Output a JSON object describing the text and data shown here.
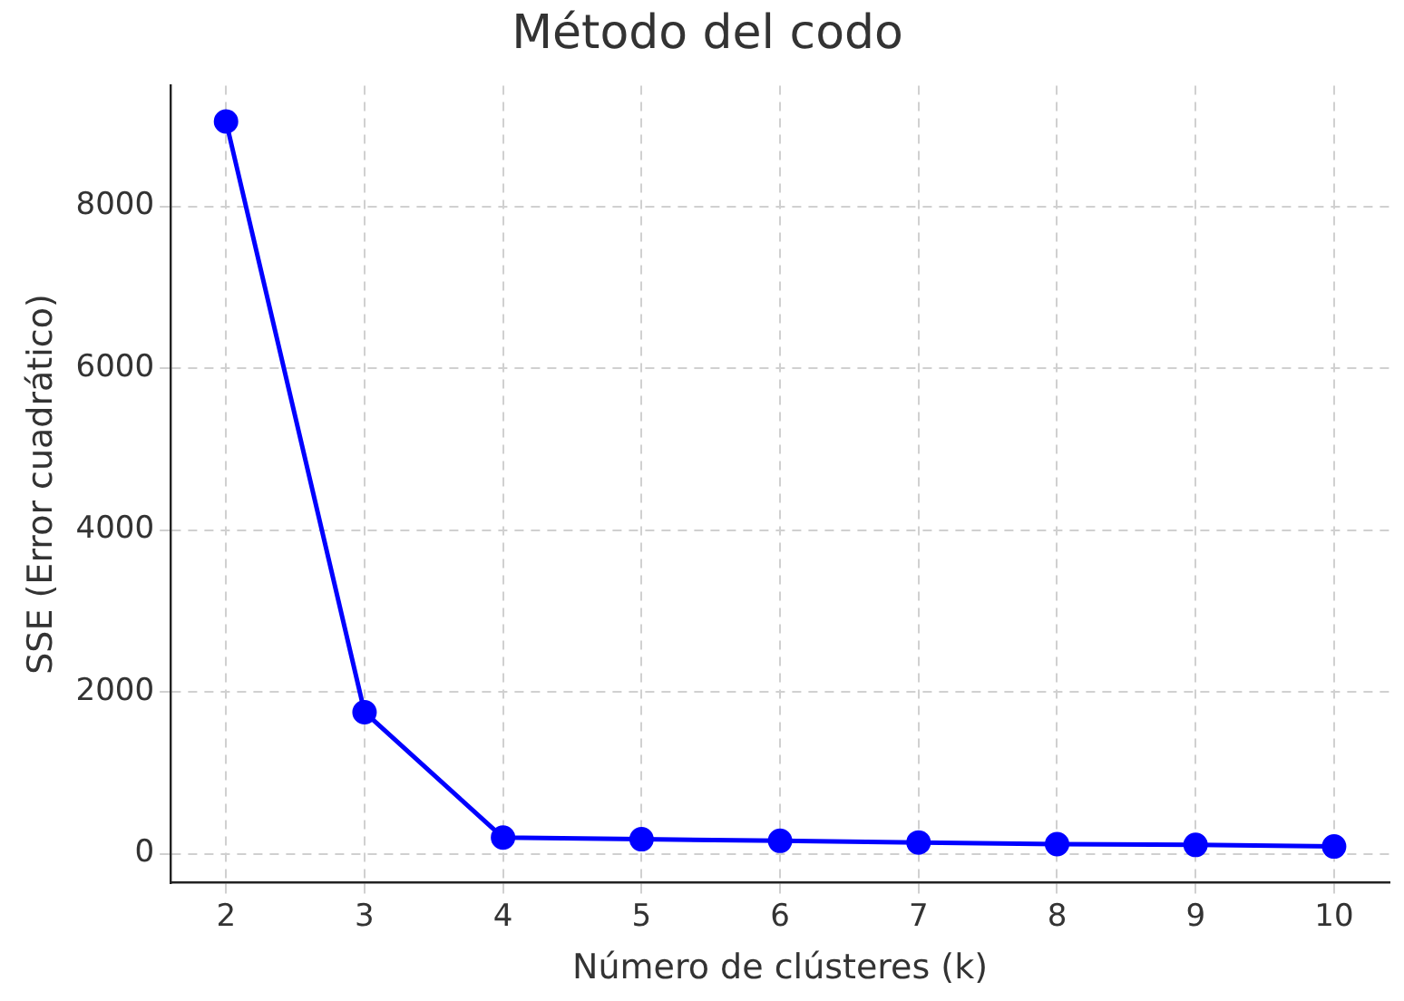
{
  "chart_data": {
    "type": "line",
    "title": "Método del codo",
    "xlabel": "Número de clústeres (k)",
    "ylabel": "SSE (Error cuadrático)",
    "x": [
      2,
      3,
      4,
      5,
      6,
      7,
      8,
      9,
      10
    ],
    "series": [
      {
        "color": "#0000ff",
        "values": [
          9050,
          1750,
          200,
          180,
          160,
          140,
          120,
          110,
          90
        ]
      }
    ],
    "xlim": [
      1.6,
      10.4
    ],
    "xticks": [
      2,
      3,
      4,
      5,
      6,
      7,
      8,
      9,
      10
    ],
    "ylim": [
      -358,
      9493
    ],
    "yticks": [
      0,
      2000,
      4000,
      6000,
      8000
    ],
    "grid": true,
    "marker": "circle",
    "line_style": "solid",
    "legend": false
  }
}
